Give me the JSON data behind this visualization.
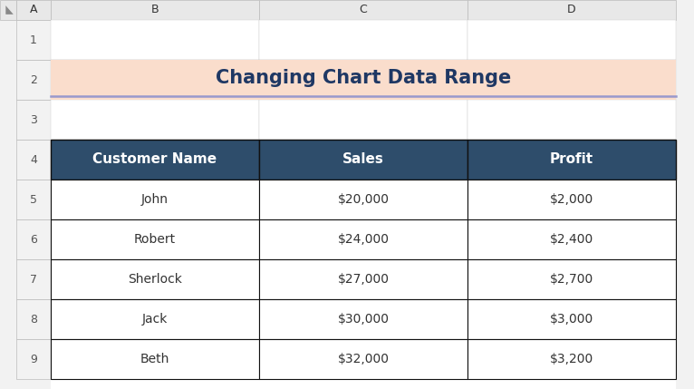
{
  "title": "Changing Chart Data Range",
  "title_bg_color": "#FADDCC",
  "title_underline_color": "#9999CC",
  "title_fontsize": 15,
  "title_fontweight": "bold",
  "title_color": "#1F3864",
  "header_bg_color": "#2E4D6B",
  "header_text_color": "#FFFFFF",
  "header_fontsize": 11,
  "header_fontweight": "bold",
  "headers": [
    "Customer Name",
    "Sales",
    "Profit"
  ],
  "rows": [
    [
      "John",
      "$20,000",
      "$2,000"
    ],
    [
      "Robert",
      "$24,000",
      "$2,400"
    ],
    [
      "Sherlock",
      "$27,000",
      "$2,700"
    ],
    [
      "Jack",
      "$30,000",
      "$3,000"
    ],
    [
      "Beth",
      "$32,000",
      "$3,200"
    ]
  ],
  "cell_bg_color": "#FFFFFF",
  "cell_text_color": "#333333",
  "cell_fontsize": 10,
  "grid_color": "#000000",
  "spreadsheet_bg": "#F2F2F2",
  "col_header_bg": "#E8E8E8",
  "row_header_bg": "#F2F2F2",
  "col_labels": [
    "A",
    "B",
    "C",
    "D"
  ],
  "row_labels": [
    "1",
    "2",
    "3",
    "4",
    "5",
    "6",
    "7",
    "8",
    "9"
  ],
  "fig_width": 7.66,
  "fig_height": 4.29,
  "dpi": 100,
  "corner_triangle_color": "#888888",
  "col_header_text_color": "#333333",
  "row_header_text_color": "#555555",
  "col_header_border": "#BBBBBB",
  "row_header_border": "#BBBBBB",
  "inner_border": "#CCCCCC"
}
